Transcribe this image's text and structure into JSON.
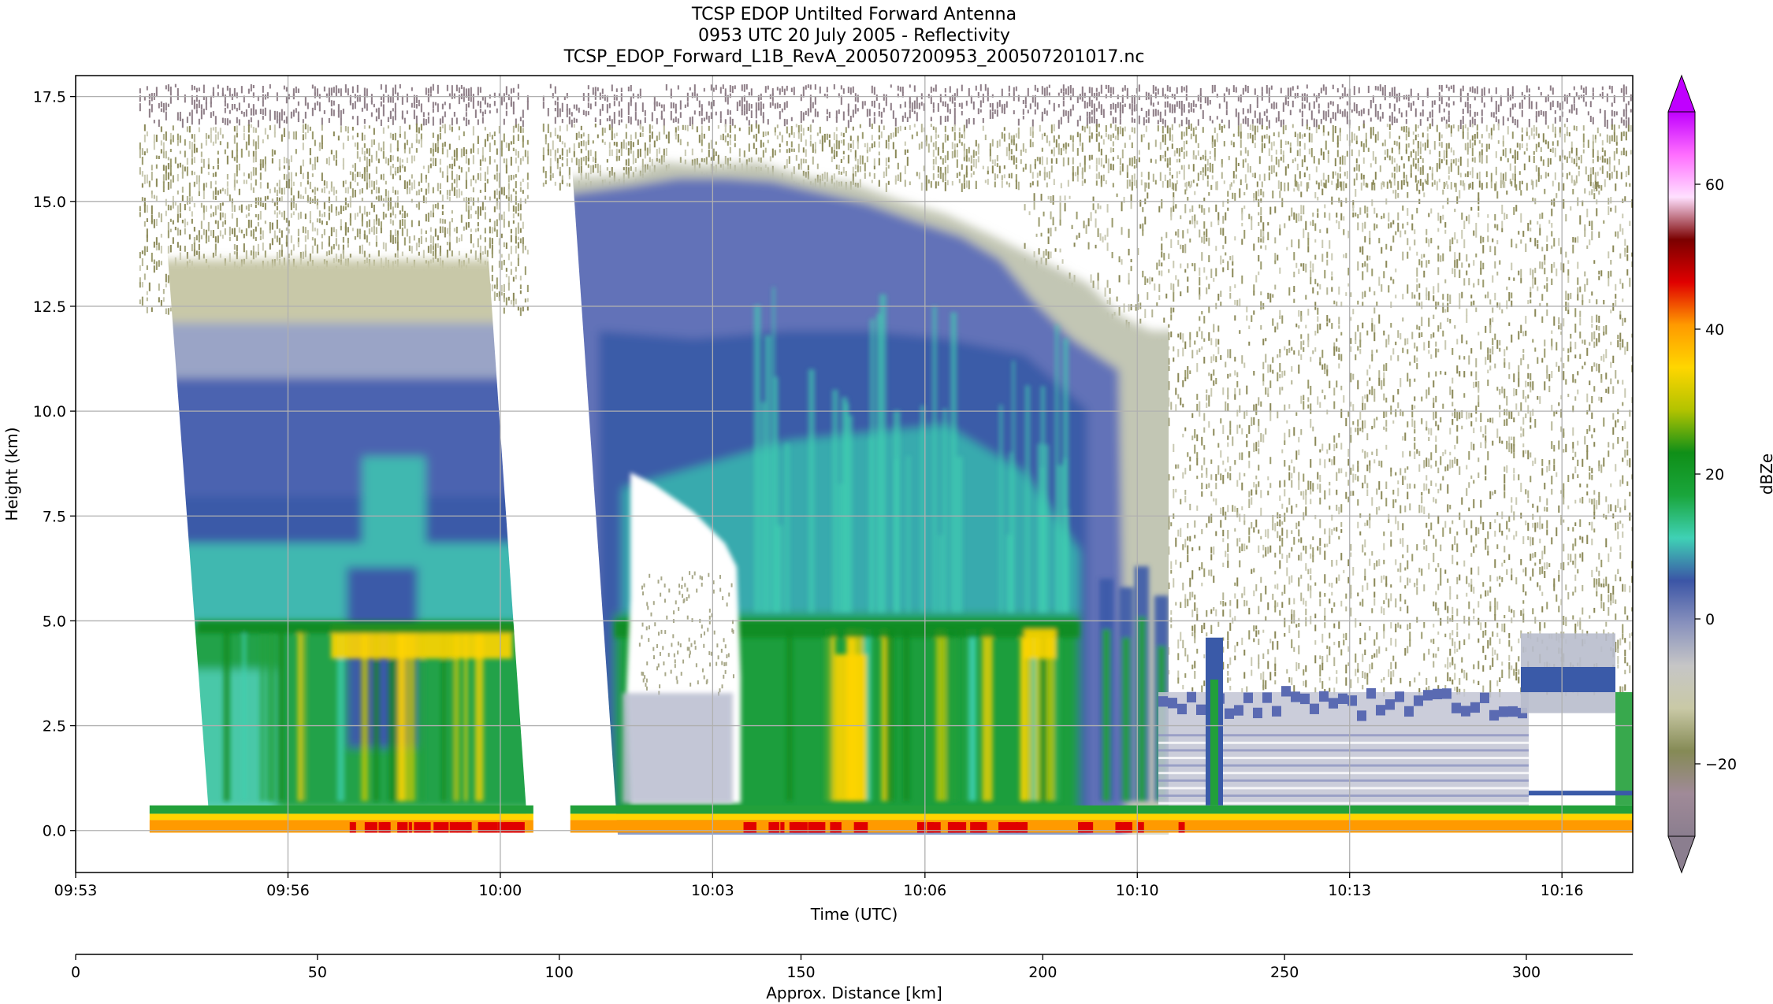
{
  "chart_data": {
    "type": "heatmap",
    "title": [
      "TCSP EDOP Untilted Forward Antenna",
      "0953 UTC 20 July 2005 - Reflectivity",
      "TCSP_EDOP_Forward_L1B_RevA_200507200953_200507201017.nc"
    ],
    "xlabel": "Time (UTC)",
    "ylabel": "Height (km)",
    "x_ticks": [
      "09:53",
      "09:56",
      "10:00",
      "10:03",
      "10:06",
      "10:10",
      "10:13",
      "10:16"
    ],
    "x_tick_minutes": [
      0,
      3,
      6,
      9,
      12,
      15,
      18,
      21
    ],
    "x_range_minutes": [
      0,
      22
    ],
    "y_ticks": [
      "0.0",
      "2.5",
      "5.0",
      "7.5",
      "10.0",
      "12.5",
      "15.0",
      "17.5"
    ],
    "y_tick_values": [
      0,
      2.5,
      5,
      7.5,
      10,
      12.5,
      15,
      17.5
    ],
    "ylim": [
      -1.0,
      18.0
    ],
    "grid": true,
    "secondary_axis": {
      "label": "Approx. Distance [km]",
      "ticks": [
        "0",
        "50",
        "100",
        "150",
        "200",
        "250",
        "300"
      ],
      "tick_values": [
        0,
        50,
        100,
        150,
        200,
        250,
        300
      ],
      "range": [
        0,
        322
      ]
    },
    "colorbar": {
      "label": "dBZe",
      "ticks": [
        "−20",
        "0",
        "20",
        "40",
        "60"
      ],
      "tick_values": [
        -20,
        0,
        20,
        40,
        60
      ],
      "range": [
        -30,
        70
      ],
      "extend": "both",
      "colors": [
        "#8b7e8f",
        "#a08a98",
        "#858a55",
        "#c9c9a6",
        "#c6c6c6",
        "#8891bd",
        "#3b55a6",
        "#3fd1b5",
        "#1aa63c",
        "#0f8f18",
        "#b2c300",
        "#ffd600",
        "#ff9a00",
        "#e00000",
        "#7b0000",
        "#ffe0ff",
        "#ff6dff",
        "#c000ff"
      ]
    },
    "segments": [
      {
        "start_min": 0.9,
        "end_min": 6.4,
        "echo_top_km": 12.2,
        "noise_top_km": 17.8,
        "melting_layer_km": 5.0,
        "max_dbz": 52
      },
      {
        "start_min": 6.9,
        "end_min": 15.4,
        "echo_top_km": 15.3,
        "noise_top_km": 17.8,
        "melting_layer_km": 5.0,
        "max_dbz": 56
      },
      {
        "start_min": 15.4,
        "end_min": 22.0,
        "echo_top_km": 3.3,
        "noise_top_km": 17.8,
        "melting_layer_km": null,
        "max_dbz": 40
      }
    ]
  }
}
